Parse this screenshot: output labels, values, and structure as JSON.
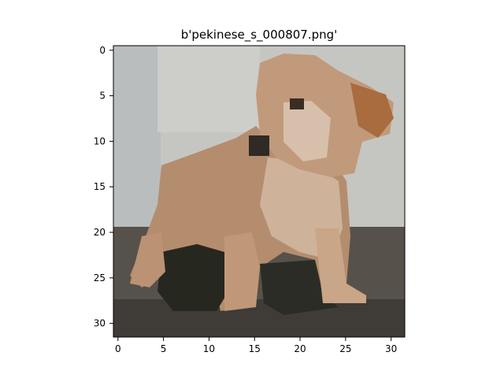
{
  "title": "b'pekinese_s_000807.png'",
  "image": {
    "description_icon": "pixelated-dog-photo",
    "grid_size": [
      32,
      32
    ],
    "colors": {
      "wall": "#c8c8c4",
      "wall_shadow": "#b8bcbc",
      "floor": "#5a534b",
      "dog_light": "#d2b49a",
      "dog_mid": "#b48c6c",
      "dog_dark": "#8c6446",
      "shadow": "#2a2a24",
      "eye": "#3c2e26"
    }
  },
  "axes": {
    "x_ticks": [
      "0",
      "5",
      "10",
      "15",
      "20",
      "25",
      "30"
    ],
    "y_ticks": [
      "0",
      "5",
      "10",
      "15",
      "20",
      "25",
      "30"
    ],
    "xlim": [
      -0.5,
      31.5
    ],
    "ylim": [
      31.5,
      -0.5
    ]
  }
}
